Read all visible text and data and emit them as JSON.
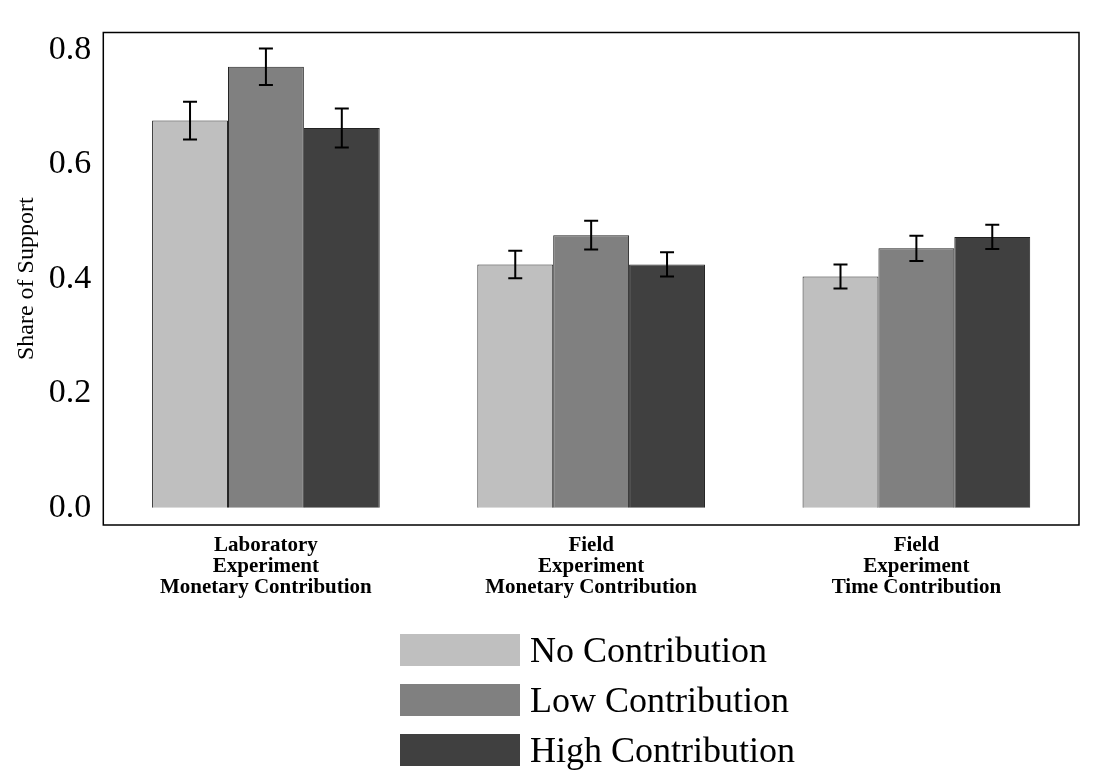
{
  "chart_data": {
    "type": "bar",
    "ylabel": "Share of Support",
    "categories": [
      "Laboratory\nExperiment\nMonetary Contribution",
      "Field\nExperiment\nMonetary Contribution",
      "Field\nExperiment\nTime Contribution"
    ],
    "series": [
      {
        "name": "No Contribution",
        "color": "#bfbfbf",
        "values": [
          0.676,
          0.425,
          0.404
        ],
        "errors": [
          0.033,
          0.024,
          0.021
        ]
      },
      {
        "name": "Low Contribution",
        "color": "#808080",
        "values": [
          0.77,
          0.476,
          0.453
        ],
        "errors": [
          0.032,
          0.025,
          0.022
        ]
      },
      {
        "name": "High Contribution",
        "color": "#404040",
        "values": [
          0.663,
          0.425,
          0.473
        ],
        "errors": [
          0.034,
          0.021,
          0.021
        ]
      }
    ],
    "ylim": [
      -0.03,
      0.83
    ],
    "yticks": [
      {
        "value": 0,
        "label": "0.0"
      },
      0.2,
      0.4,
      0.6,
      0.8
    ],
    "grid": false,
    "legend": "bottom"
  }
}
